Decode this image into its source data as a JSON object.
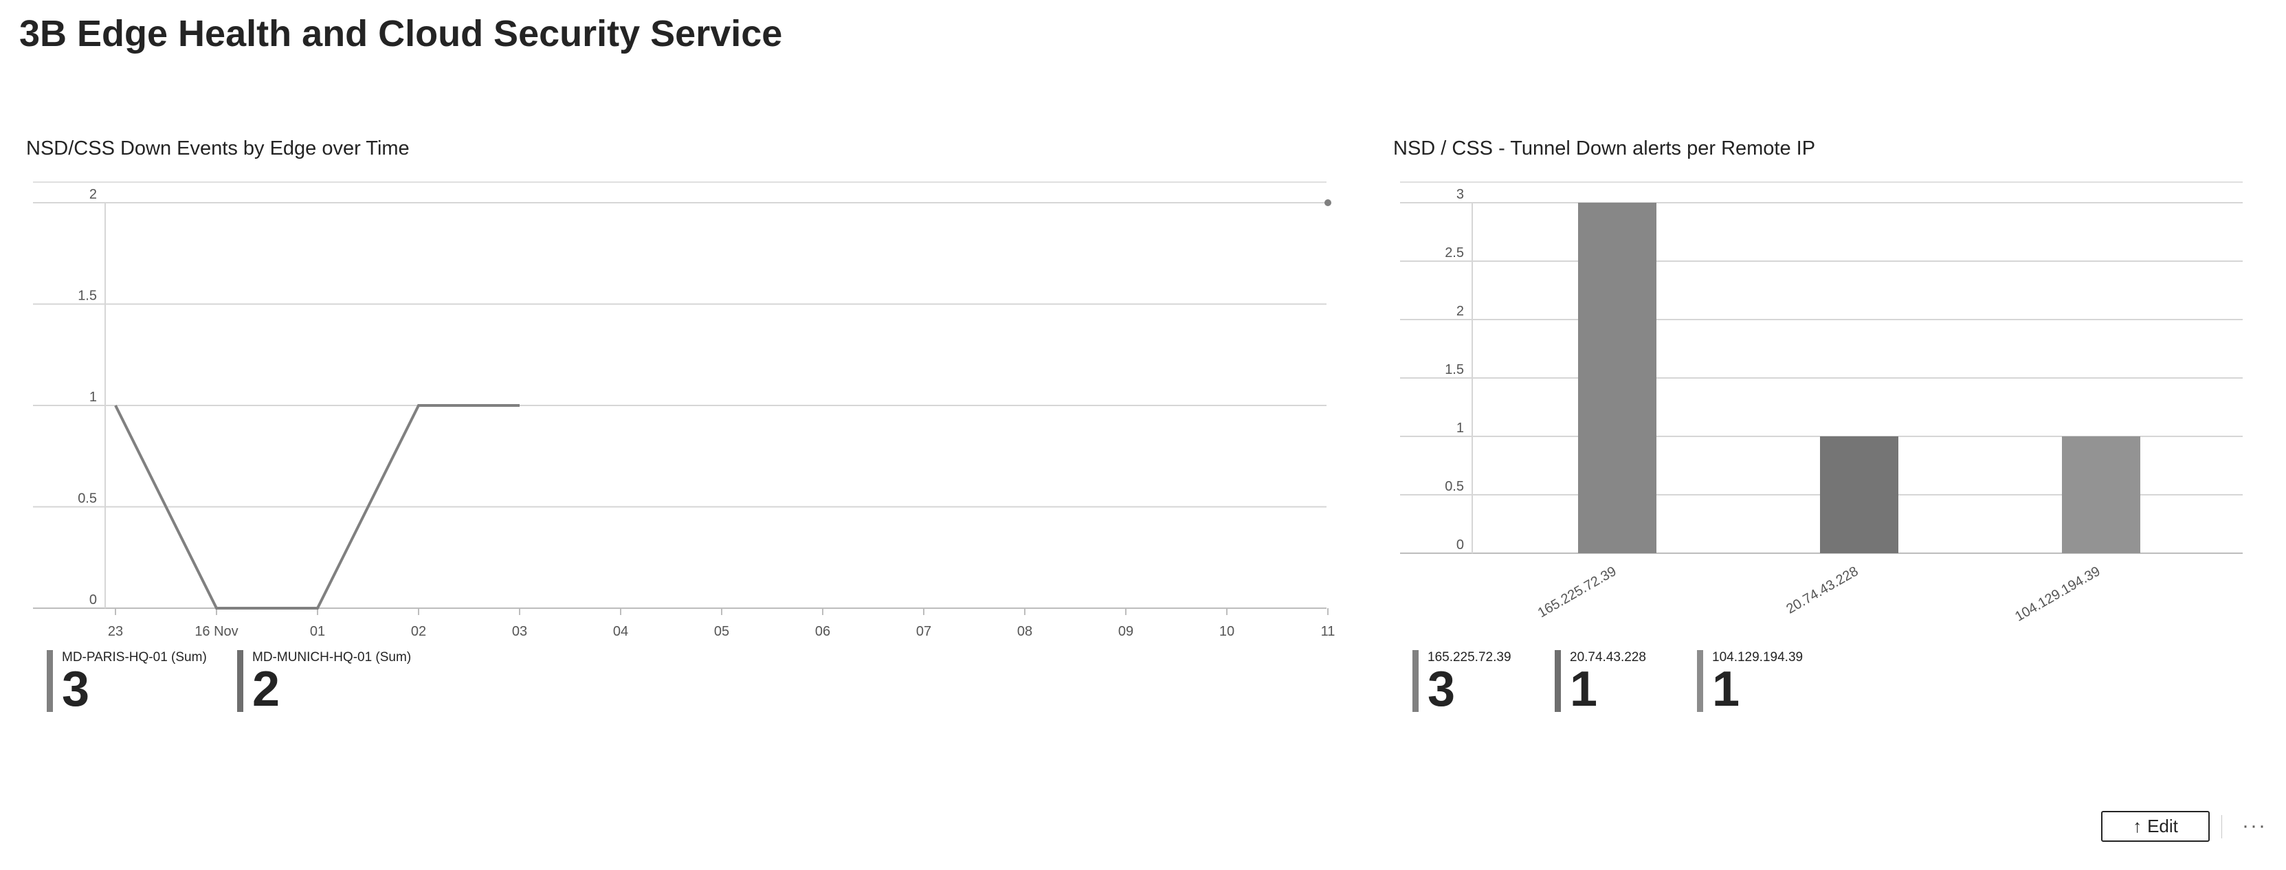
{
  "page": {
    "title": "3B Edge Health and Cloud Security Service",
    "edit_label": "Edit",
    "more_label": "···"
  },
  "colors": {
    "grid": "#d6d6d6",
    "axis_text": "#555555",
    "line": "#808080",
    "bar_1": "#878787",
    "bar_2": "#757575",
    "bar_3": "#939393",
    "legend_1": "#808080",
    "legend_2": "#6e6e6e",
    "legend_3": "#8c8c8c"
  },
  "chart_data": [
    {
      "type": "line",
      "title": "NSD/CSS Down Events by Edge over Time",
      "x": [
        "23",
        "16 Nov",
        "01",
        "02",
        "03",
        "04",
        "05",
        "06",
        "07",
        "08",
        "09",
        "10",
        "11"
      ],
      "ylim": [
        0,
        2
      ],
      "yticks": [
        "0",
        "0.5",
        "1",
        "1.5",
        "2"
      ],
      "grid": true,
      "series": [
        {
          "name": "MD-PARIS-HQ-01 (Sum)",
          "values": [
            1,
            0,
            0,
            1,
            1,
            null,
            null,
            null,
            null,
            null,
            null,
            null,
            null
          ]
        },
        {
          "name": "MD-MUNICH-HQ-01 (Sum)",
          "values": [
            null,
            null,
            null,
            null,
            null,
            null,
            null,
            null,
            null,
            null,
            null,
            null,
            2
          ]
        }
      ],
      "legend": {
        "placement": "bottom",
        "items": [
          {
            "name": "MD-PARIS-HQ-01 (Sum)",
            "value": "3"
          },
          {
            "name": "MD-MUNICH-HQ-01 (Sum)",
            "value": "2"
          }
        ]
      }
    },
    {
      "type": "bar",
      "title": "NSD / CSS - Tunnel Down alerts per Remote IP",
      "categories": [
        "165.225.72.39",
        "20.74.43.228",
        "104.129.194.39"
      ],
      "values": [
        3,
        1,
        1
      ],
      "ylim": [
        0,
        3
      ],
      "yticks": [
        "0",
        "0.5",
        "1",
        "1.5",
        "2",
        "2.5",
        "3"
      ],
      "grid": true,
      "legend": {
        "placement": "bottom",
        "items": [
          {
            "name": "165.225.72.39",
            "value": "3"
          },
          {
            "name": "20.74.43.228",
            "value": "1"
          },
          {
            "name": "104.129.194.39",
            "value": "1"
          }
        ]
      }
    }
  ]
}
